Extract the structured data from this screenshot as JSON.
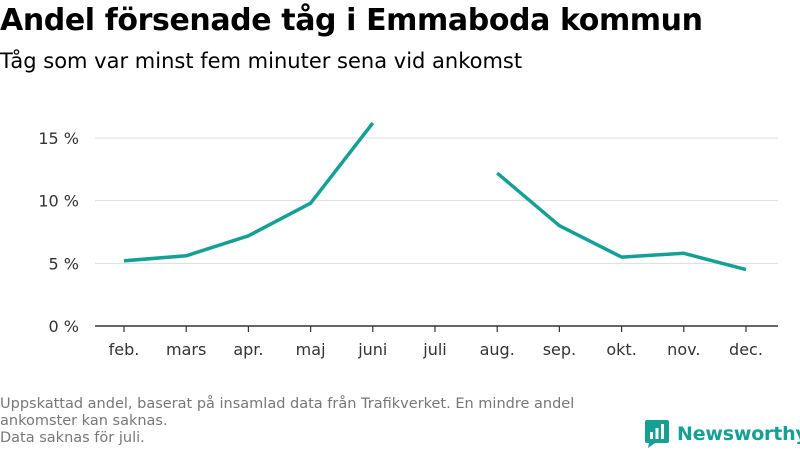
{
  "header": {
    "title": "Andel försenade tåg i Emmaboda kommun",
    "subtitle": "Tåg som var minst fem minuter sena vid ankomst"
  },
  "footer": {
    "note_line1": "Uppskattad andel, baserat på insamlad data från Trafikverket. En mindre andel ankomster kan saknas.",
    "note_line2": "Data saknas för juli.",
    "brand": "Newsworthy"
  },
  "colors": {
    "line": "#14a094",
    "grid": "#dddddd",
    "axis": "#333333",
    "brand": "#15a093"
  },
  "chart_data": {
    "type": "line",
    "title": "Andel försenade tåg i Emmaboda kommun",
    "subtitle": "Tåg som var minst fem minuter sena vid ankomst",
    "categories": [
      "feb.",
      "mars",
      "apr.",
      "maj",
      "juni",
      "juli",
      "aug.",
      "sep.",
      "okt.",
      "nov.",
      "dec."
    ],
    "values": [
      5.2,
      5.6,
      7.2,
      9.8,
      16.2,
      null,
      12.2,
      8.0,
      5.5,
      5.8,
      4.5
    ],
    "yticks": [
      0,
      5,
      10,
      15
    ],
    "ytick_labels": [
      "0 %",
      "5 %",
      "10 %",
      "15 %"
    ],
    "ylim": [
      0,
      17
    ],
    "grid": true,
    "xlabel": "",
    "ylabel": ""
  }
}
